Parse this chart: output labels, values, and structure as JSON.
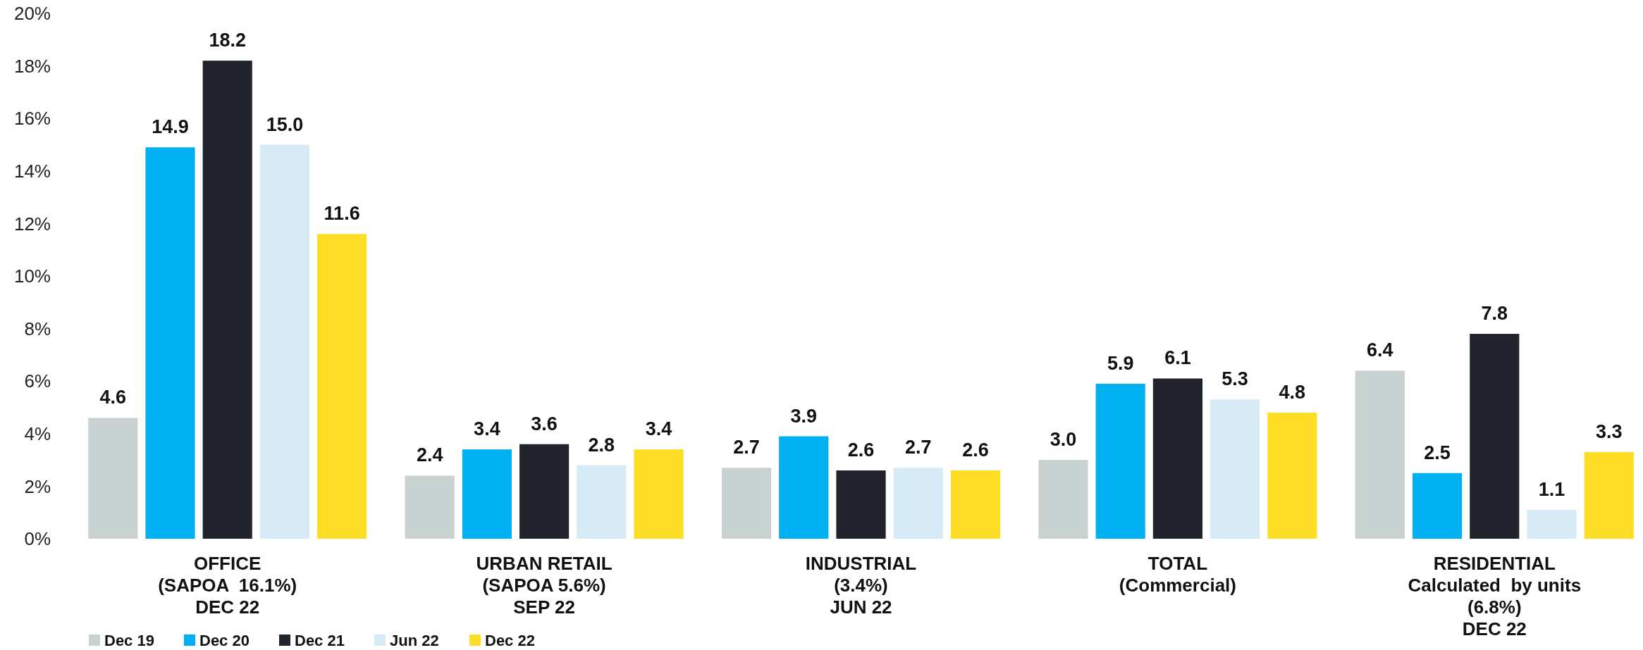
{
  "chart_data": {
    "type": "bar",
    "categories": [
      "OFFICE\n(SAPOA  16.1%)\nDEC 22",
      "URBAN RETAIL\n(SAPOA 5.6%)\nSEP 22",
      "INDUSTRIAL\n(3.4%)\nJUN 22",
      "TOTAL\n(Commercial)",
      "RESIDENTIAL\nCalculated  by units\n(6.8%)\nDEC 22"
    ],
    "series": [
      {
        "name": "Dec 19",
        "color": "#c8d2d0",
        "values": [
          4.6,
          2.4,
          2.7,
          3.0,
          6.4
        ],
        "value_labels": [
          "4.6",
          "2.4",
          "2.7",
          "3.0",
          "6.4"
        ]
      },
      {
        "name": "Dec 20",
        "color": "#00b0f0",
        "values": [
          14.9,
          3.4,
          3.9,
          5.9,
          2.5
        ],
        "value_labels": [
          "14.9",
          "3.4",
          "3.9",
          "5.9",
          "2.5"
        ]
      },
      {
        "name": "Dec 21",
        "color": "#22242d",
        "values": [
          18.2,
          3.6,
          2.6,
          6.1,
          7.8
        ],
        "value_labels": [
          "18.2",
          "3.6",
          "2.6",
          "6.1",
          "7.8"
        ]
      },
      {
        "name": "Jun 22",
        "color": "#d7ebf6",
        "values": [
          15.0,
          2.8,
          2.7,
          5.3,
          1.1
        ],
        "value_labels": [
          "15.0",
          "2.8",
          "2.7",
          "5.3",
          "1.1"
        ]
      },
      {
        "name": "Dec 22",
        "color": "#fedd25",
        "values": [
          11.6,
          3.4,
          2.6,
          4.8,
          3.3
        ],
        "value_labels": [
          "11.6",
          "3.4",
          "2.6",
          "4.8",
          "3.3"
        ]
      }
    ],
    "ylim": [
      0,
      20
    ],
    "yticks": [
      {
        "value": 0,
        "label": "0%"
      },
      {
        "value": 2,
        "label": "2%"
      },
      {
        "value": 4,
        "label": "4%"
      },
      {
        "value": 6,
        "label": "6%"
      },
      {
        "value": 8,
        "label": "8%"
      },
      {
        "value": 10,
        "label": "10%"
      },
      {
        "value": 12,
        "label": "12%"
      },
      {
        "value": 14,
        "label": "14%"
      },
      {
        "value": 16,
        "label": "16%"
      },
      {
        "value": 18,
        "label": "18%"
      },
      {
        "value": 20,
        "label": "20%"
      }
    ],
    "legend": "bottom left"
  }
}
